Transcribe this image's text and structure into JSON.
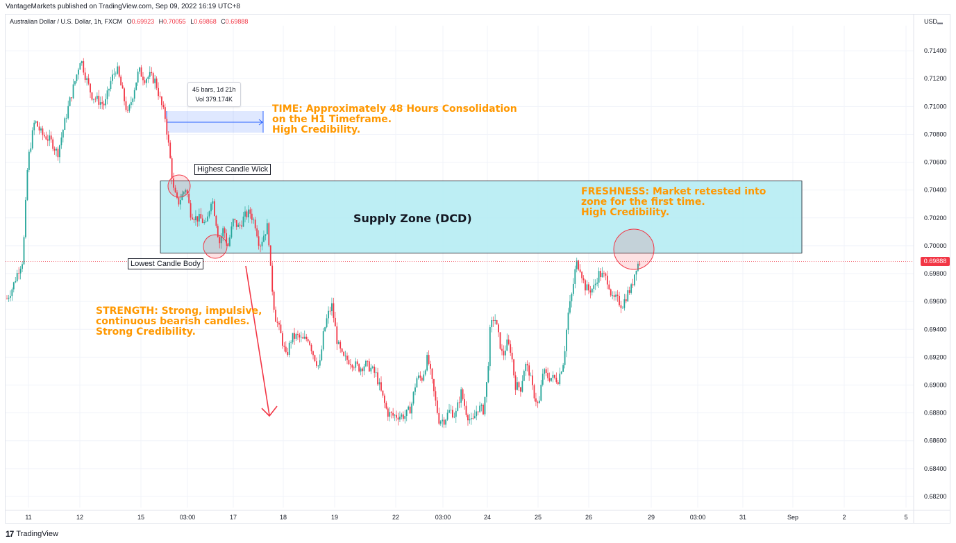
{
  "header": {
    "publisher": "VantageMarkets published on TradingView.com, Sep 09, 2022 16:19 UTC+8",
    "symbol": "Australian Dollar / U.S. Dollar, 1h, FXCM",
    "ohlc": {
      "o": "0.69923",
      "h": "0.70055",
      "l": "0.69868",
      "c": "0.69888"
    },
    "ohlc_keys": {
      "o": "O",
      "h": "H",
      "l": "L",
      "c": "C"
    },
    "currency": "USD"
  },
  "footer": {
    "brand": "TradingView",
    "logo_mark": "17"
  },
  "colors": {
    "up": "#26a69a",
    "down": "#f23645",
    "annotation": "#ff9800",
    "zone_fill": "#b2ebf2",
    "measure": "#2962ff"
  },
  "annotations": {
    "time": [
      "TIME: Approximately 48 Hours Consolidation",
      "on the H1 Timeframe.",
      "High Credibility."
    ],
    "strength": [
      "STRENGTH: Strong, impulsive,",
      "continuous bearish candles.",
      "Strong Credibility."
    ],
    "freshness": [
      "FRESHNESS: Market retested into",
      "zone for the first time.",
      "High Credibility."
    ],
    "highest_wick": "Highest Candle Wick",
    "lowest_body": "Lowest Candle Body",
    "zone_label": "Supply Zone (DCD)",
    "measure_bars": "45 bars, 1d 21h",
    "measure_vol": "Vol 379.174K"
  },
  "chart_data": {
    "type": "candlestick",
    "title": "",
    "xlabel": "",
    "ylabel": "",
    "ylim": [
      0.6812,
      0.7158
    ],
    "y_ticks": [
      "0.71400",
      "0.71200",
      "0.71000",
      "0.70800",
      "0.70600",
      "0.70400",
      "0.70200",
      "0.70000",
      "0.69800",
      "0.69600",
      "0.69400",
      "0.69200",
      "0.69000",
      "0.68800",
      "0.68600",
      "0.68400",
      "0.68200"
    ],
    "x_ticks": [
      "11",
      "12",
      "15",
      "03:00",
      "17",
      "18",
      "19",
      "22",
      "03:00",
      "24",
      "25",
      "26",
      "29",
      "03:00",
      "31",
      "Sep",
      "2",
      "5"
    ],
    "last_price": "0.69888",
    "supply_zone": {
      "top": 0.70465,
      "bottom": 0.69948
    },
    "measure": {
      "bars": 45,
      "duration": "1d 21h",
      "volume": "379.174K"
    },
    "price_path": [
      [
        0,
        0.6962
      ],
      [
        8,
        0.697
      ],
      [
        16,
        0.6982
      ],
      [
        23,
        0.699
      ],
      [
        30,
        0.706
      ],
      [
        40,
        0.709
      ],
      [
        50,
        0.708
      ],
      [
        57,
        0.7078
      ],
      [
        65,
        0.7074
      ],
      [
        73,
        0.7066
      ],
      [
        82,
        0.7086
      ],
      [
        90,
        0.7103
      ],
      [
        100,
        0.7122
      ],
      [
        106,
        0.7135
      ],
      [
        113,
        0.7122
      ],
      [
        122,
        0.7108
      ],
      [
        132,
        0.7104
      ],
      [
        141,
        0.7101
      ],
      [
        150,
        0.7119
      ],
      [
        158,
        0.7128
      ],
      [
        166,
        0.7111
      ],
      [
        174,
        0.7094
      ],
      [
        182,
        0.711
      ],
      [
        190,
        0.7126
      ],
      [
        198,
        0.712
      ],
      [
        206,
        0.7122
      ],
      [
        214,
        0.7118
      ],
      [
        222,
        0.7102
      ],
      [
        228,
        0.7092
      ],
      [
        235,
        0.7063
      ],
      [
        240,
        0.704
      ],
      [
        246,
        0.703
      ],
      [
        252,
        0.7036
      ],
      [
        258,
        0.7042
      ],
      [
        264,
        0.7024
      ],
      [
        272,
        0.702
      ],
      [
        280,
        0.7019
      ],
      [
        287,
        0.7014
      ],
      [
        295,
        0.7036
      ],
      [
        300,
        0.7021
      ],
      [
        306,
        0.7002
      ],
      [
        312,
        0.7013
      ],
      [
        318,
        0.6999
      ],
      [
        326,
        0.7018
      ],
      [
        334,
        0.7013
      ],
      [
        342,
        0.7021
      ],
      [
        350,
        0.7024
      ],
      [
        358,
        0.7015
      ],
      [
        364,
        0.7
      ],
      [
        370,
        0.7008
      ],
      [
        376,
        0.7015
      ],
      [
        380,
        0.698
      ],
      [
        386,
        0.695
      ],
      [
        394,
        0.6937
      ],
      [
        402,
        0.692
      ],
      [
        410,
        0.6934
      ],
      [
        418,
        0.6935
      ],
      [
        426,
        0.6932
      ],
      [
        434,
        0.6934
      ],
      [
        442,
        0.6921
      ],
      [
        450,
        0.6912
      ],
      [
        456,
        0.6937
      ],
      [
        462,
        0.695
      ],
      [
        468,
        0.6957
      ],
      [
        476,
        0.693
      ],
      [
        484,
        0.6919
      ],
      [
        492,
        0.6918
      ],
      [
        500,
        0.6915
      ],
      [
        508,
        0.6912
      ],
      [
        516,
        0.6915
      ],
      [
        524,
        0.6912
      ],
      [
        532,
        0.6907
      ],
      [
        540,
        0.6893
      ],
      [
        548,
        0.688
      ],
      [
        556,
        0.6878
      ],
      [
        564,
        0.6878
      ],
      [
        574,
        0.6878
      ],
      [
        582,
        0.6884
      ],
      [
        590,
        0.6905
      ],
      [
        598,
        0.6905
      ],
      [
        606,
        0.692
      ],
      [
        614,
        0.6897
      ],
      [
        622,
        0.6875
      ],
      [
        630,
        0.6875
      ],
      [
        638,
        0.6882
      ],
      [
        646,
        0.6878
      ],
      [
        654,
        0.6895
      ],
      [
        662,
        0.688
      ],
      [
        670,
        0.6872
      ],
      [
        678,
        0.6884
      ],
      [
        686,
        0.6882
      ],
      [
        692,
        0.6905
      ],
      [
        696,
        0.694
      ],
      [
        702,
        0.695
      ],
      [
        708,
        0.6935
      ],
      [
        714,
        0.692
      ],
      [
        720,
        0.693
      ],
      [
        726,
        0.6925
      ],
      [
        732,
        0.69
      ],
      [
        740,
        0.6898
      ],
      [
        746,
        0.6915
      ],
      [
        752,
        0.691
      ],
      [
        758,
        0.6895
      ],
      [
        766,
        0.6884
      ],
      [
        772,
        0.691
      ],
      [
        778,
        0.6906
      ],
      [
        786,
        0.6905
      ],
      [
        794,
        0.6904
      ],
      [
        802,
        0.6918
      ],
      [
        808,
        0.695
      ],
      [
        814,
        0.6966
      ],
      [
        820,
        0.6988
      ],
      [
        826,
        0.6984
      ],
      [
        832,
        0.6971
      ],
      [
        838,
        0.6968
      ],
      [
        846,
        0.697
      ],
      [
        852,
        0.698
      ],
      [
        860,
        0.6978
      ],
      [
        866,
        0.6975
      ],
      [
        872,
        0.6961
      ],
      [
        878,
        0.6962
      ],
      [
        886,
        0.6957
      ],
      [
        894,
        0.6966
      ],
      [
        900,
        0.697
      ],
      [
        906,
        0.6985
      ],
      [
        912,
        0.6989
      ]
    ]
  }
}
